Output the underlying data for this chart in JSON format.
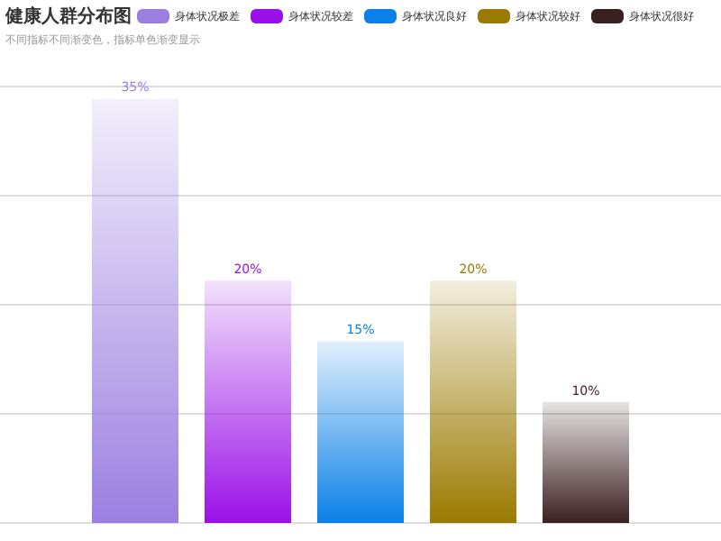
{
  "chart_data": {
    "type": "bar",
    "title": "健康人群分布图",
    "subtitle": "不同指标不同渐变色，指标单色渐变显示",
    "categories": [
      null
    ],
    "series": [
      {
        "name": "身体状况极差",
        "color": "#9b7fe0",
        "values": [
          35
        ],
        "value_labels": [
          "35%"
        ]
      },
      {
        "name": "身体状况较差",
        "color": "#9b10e8",
        "values": [
          20
        ],
        "value_labels": [
          "20%"
        ]
      },
      {
        "name": "身体状况良好",
        "color": "#0a80e8",
        "values": [
          15
        ],
        "value_labels": [
          "15%"
        ]
      },
      {
        "name": "身体状况较好",
        "color": "#9a7a00",
        "values": [
          20
        ],
        "value_labels": [
          "20%"
        ]
      },
      {
        "name": "身体状况很好",
        "color": "#3a1f20",
        "values": [
          10
        ],
        "value_labels": [
          "10%"
        ]
      }
    ],
    "grid": "y",
    "legend": "top"
  }
}
